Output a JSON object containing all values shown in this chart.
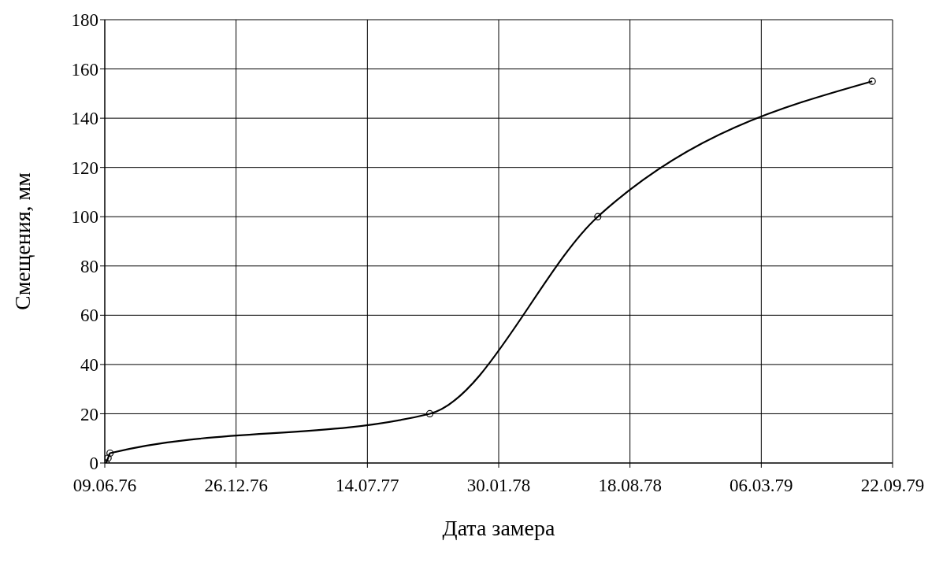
{
  "chart_data": {
    "type": "line",
    "xlabel": "Дата замера",
    "ylabel": "Смещения, мм",
    "x": [
      "1976-06-11",
      "1976-06-14",
      "1976-06-17",
      "1977-10-17",
      "1978-06-30",
      "1979-08-22"
    ],
    "series": [
      {
        "color": "#000000",
        "values": [
          0,
          2,
          4,
          20,
          100,
          155
        ]
      }
    ],
    "xlim": [
      "1976-06-09",
      "1979-09-22"
    ],
    "xticks": [
      {
        "value": "1976-06-09",
        "label": "09.06.76"
      },
      {
        "value": "1976-12-26",
        "label": "26.12.76"
      },
      {
        "value": "1977-07-14",
        "label": "14.07.77"
      },
      {
        "value": "1978-01-30",
        "label": "30.01.78"
      },
      {
        "value": "1978-08-18",
        "label": "18.08.78"
      },
      {
        "value": "1979-03-06",
        "label": "06.03.79"
      },
      {
        "value": "1979-09-22",
        "label": "22.09.79"
      }
    ],
    "ylim": [
      0,
      180
    ],
    "yticks": [
      0,
      20,
      40,
      60,
      80,
      100,
      120,
      140,
      160,
      180
    ],
    "grid": true,
    "marker": "circle",
    "line_style": "solid",
    "legend": false
  }
}
